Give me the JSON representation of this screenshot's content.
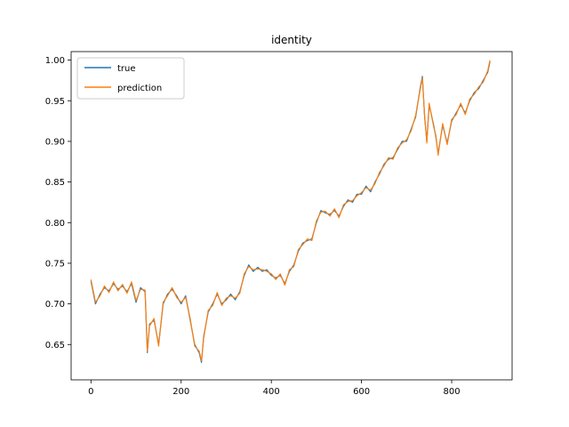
{
  "chart_data": {
    "type": "line",
    "title": "identity",
    "xlabel": "",
    "ylabel": "",
    "xlim": [
      -44,
      934
    ],
    "ylim": [
      0.6065,
      1.0105
    ],
    "x_ticks": [
      0,
      200,
      400,
      600,
      800
    ],
    "x_tick_labels": [
      "0",
      "200",
      "400",
      "600",
      "800"
    ],
    "y_ticks": [
      0.65,
      0.7,
      0.75,
      0.8,
      0.85,
      0.9,
      0.95,
      1.0
    ],
    "y_tick_labels": [
      "0.65",
      "0.70",
      "0.75",
      "0.80",
      "0.85",
      "0.90",
      "0.95",
      "1.00"
    ],
    "grid": false,
    "legend_position": "top-left",
    "x": [
      0,
      10,
      20,
      30,
      40,
      50,
      60,
      70,
      80,
      90,
      100,
      110,
      120,
      125,
      130,
      140,
      150,
      160,
      170,
      180,
      190,
      200,
      210,
      220,
      230,
      240,
      245,
      250,
      260,
      270,
      280,
      290,
      300,
      310,
      320,
      330,
      340,
      350,
      360,
      370,
      380,
      390,
      400,
      410,
      420,
      430,
      440,
      450,
      460,
      470,
      480,
      490,
      500,
      510,
      520,
      530,
      540,
      550,
      560,
      570,
      580,
      590,
      600,
      610,
      620,
      630,
      640,
      650,
      660,
      670,
      680,
      690,
      700,
      710,
      720,
      730,
      735,
      740,
      745,
      750,
      760,
      765,
      770,
      780,
      790,
      800,
      810,
      820,
      830,
      840,
      850,
      860,
      870,
      880,
      885
    ],
    "series": [
      {
        "name": "true",
        "color": "#1f77b4",
        "values": [
          0.728,
          0.7,
          0.712,
          0.72,
          0.716,
          0.725,
          0.718,
          0.722,
          0.715,
          0.725,
          0.702,
          0.72,
          0.715,
          0.64,
          0.675,
          0.68,
          0.65,
          0.7,
          0.712,
          0.718,
          0.71,
          0.7,
          0.71,
          0.68,
          0.65,
          0.64,
          0.628,
          0.66,
          0.69,
          0.7,
          0.712,
          0.7,
          0.705,
          0.712,
          0.705,
          0.715,
          0.735,
          0.748,
          0.74,
          0.745,
          0.74,
          0.742,
          0.735,
          0.732,
          0.735,
          0.725,
          0.74,
          0.748,
          0.765,
          0.775,
          0.778,
          0.78,
          0.8,
          0.815,
          0.812,
          0.81,
          0.815,
          0.808,
          0.82,
          0.828,
          0.825,
          0.835,
          0.835,
          0.845,
          0.838,
          0.85,
          0.86,
          0.872,
          0.878,
          0.88,
          0.89,
          0.9,
          0.9,
          0.915,
          0.93,
          0.965,
          0.98,
          0.93,
          0.9,
          0.945,
          0.92,
          0.905,
          0.885,
          0.92,
          0.898,
          0.925,
          0.935,
          0.945,
          0.935,
          0.95,
          0.96,
          0.965,
          0.975,
          0.985,
          0.998
        ]
      },
      {
        "name": "prediction",
        "color": "#ff7f0e",
        "values": [
          0.73,
          0.702,
          0.71,
          0.722,
          0.714,
          0.727,
          0.716,
          0.724,
          0.713,
          0.727,
          0.704,
          0.718,
          0.717,
          0.642,
          0.673,
          0.682,
          0.648,
          0.702,
          0.71,
          0.72,
          0.708,
          0.702,
          0.708,
          0.682,
          0.648,
          0.642,
          0.63,
          0.658,
          0.692,
          0.698,
          0.714,
          0.698,
          0.707,
          0.71,
          0.707,
          0.713,
          0.737,
          0.746,
          0.742,
          0.743,
          0.742,
          0.74,
          0.737,
          0.73,
          0.737,
          0.723,
          0.742,
          0.746,
          0.767,
          0.773,
          0.78,
          0.778,
          0.802,
          0.813,
          0.814,
          0.808,
          0.817,
          0.806,
          0.822,
          0.826,
          0.827,
          0.833,
          0.837,
          0.843,
          0.84,
          0.848,
          0.862,
          0.87,
          0.88,
          0.878,
          0.892,
          0.898,
          0.902,
          0.913,
          0.932,
          0.963,
          0.978,
          0.932,
          0.898,
          0.947,
          0.918,
          0.907,
          0.883,
          0.922,
          0.896,
          0.927,
          0.933,
          0.947,
          0.933,
          0.952,
          0.958,
          0.967,
          0.973,
          0.987,
          1.0
        ]
      }
    ]
  }
}
